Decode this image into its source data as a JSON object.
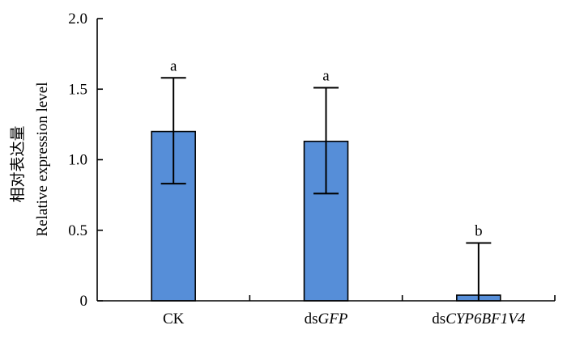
{
  "chart_data": {
    "type": "bar",
    "categories": [
      "CK",
      "dsGFP",
      "dsCYP6BF1V4"
    ],
    "category_parts": [
      [
        {
          "t": "CK",
          "italic": false
        }
      ],
      [
        {
          "t": "ds",
          "italic": false
        },
        {
          "t": "GFP",
          "italic": true
        }
      ],
      [
        {
          "t": "ds",
          "italic": false
        },
        {
          "t": "CYP6BF1V4",
          "italic": true
        }
      ]
    ],
    "values": [
      1.2,
      1.13,
      0.04
    ],
    "error_upper": [
      1.58,
      1.51,
      0.41
    ],
    "error_lower": [
      0.83,
      0.76,
      0.0
    ],
    "significance": [
      "a",
      "a",
      "b"
    ],
    "ylabel_line1": "相对表达量",
    "ylabel_line2": "Relative expression level",
    "ylim": [
      0,
      2.0
    ],
    "yticks": [
      0,
      0.5,
      1.0,
      1.5,
      2.0
    ],
    "ytick_labels": [
      "0",
      "0.5",
      "1.0",
      "1.5",
      "2.0"
    ],
    "bar_color": "#568ed8",
    "grid": false,
    "legend": "none"
  }
}
